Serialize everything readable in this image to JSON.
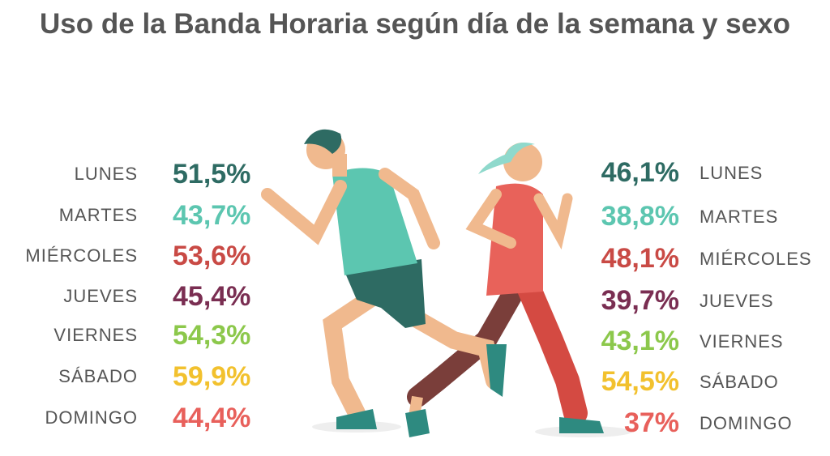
{
  "title": "Uso de la Banda Horaria según día de la semana y sexo",
  "left": {
    "rows": [
      {
        "day": "LUNES",
        "value": "51,5%"
      },
      {
        "day": "MARTES",
        "value": "43,7%"
      },
      {
        "day": "MIÉRCOLES",
        "value": "53,6%"
      },
      {
        "day": "JUEVES",
        "value": "45,4%"
      },
      {
        "day": "VIERNES",
        "value": "54,3%"
      },
      {
        "day": "SÁBADO",
        "value": "59,9%"
      },
      {
        "day": "DOMINGO",
        "value": "44,4%"
      }
    ]
  },
  "right": {
    "rows": [
      {
        "day": "LUNES",
        "value": "46,1%"
      },
      {
        "day": "MARTES",
        "value": "38,8%"
      },
      {
        "day": "MIÉRCOLES",
        "value": "48,1%"
      },
      {
        "day": "JUEVES",
        "value": "39,7%"
      },
      {
        "day": "VIERNES",
        "value": "43,1%"
      },
      {
        "day": "SÁBADO",
        "value": "54,5%"
      },
      {
        "day": "DOMINGO",
        "value": "37%"
      }
    ]
  }
}
